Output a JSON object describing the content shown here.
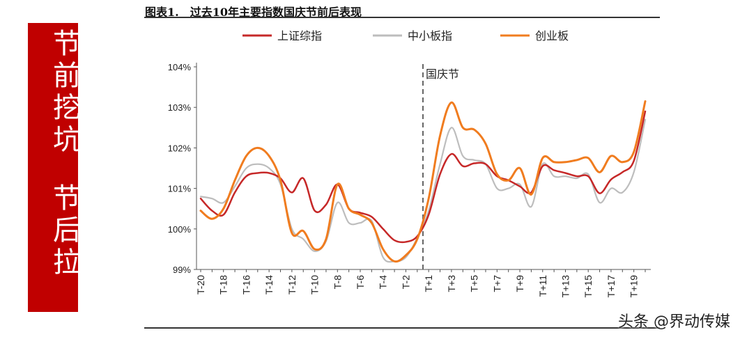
{
  "figure_title": "图表1.　过去10年主要指数国庆节前后表现",
  "banner": {
    "line1": "节前挖坑",
    "line2": "节后拉"
  },
  "watermark": "头条 @界动传媒",
  "chart_data": {
    "type": "line",
    "title": "图表1.　过去10年主要指数国庆节前后表现",
    "x": [
      "T-20",
      "T-19",
      "T-18",
      "T-17",
      "T-16",
      "T-15",
      "T-14",
      "T-13",
      "T-12",
      "T-11",
      "T-10",
      "T-9",
      "T-8",
      "T-7",
      "T-6",
      "T-5",
      "T-4",
      "T-3",
      "T-2",
      "T-1",
      "T+1",
      "T+2",
      "T+3",
      "T+4",
      "T+5",
      "T+6",
      "T+7",
      "T+8",
      "T+9",
      "T+10",
      "T+11",
      "T+12",
      "T+13",
      "T+14",
      "T+15",
      "T+16",
      "T+17",
      "T+18",
      "T+19",
      "T+20"
    ],
    "tick_labels": [
      "T-20",
      "T-18",
      "T-16",
      "T-14",
      "T-12",
      "T-10",
      "T-8",
      "T-6",
      "T-4",
      "T-2",
      "T+1",
      "T+3",
      "T+5",
      "T+7",
      "T+9",
      "T+11",
      "T+13",
      "T+15",
      "T+17",
      "T+19"
    ],
    "series": [
      {
        "name": "上证综指",
        "color": "#c62828",
        "values": [
          100.75,
          100.45,
          100.35,
          100.9,
          101.3,
          101.38,
          101.38,
          101.25,
          100.9,
          101.25,
          100.45,
          100.6,
          101.1,
          100.5,
          100.4,
          100.3,
          100.0,
          99.72,
          99.68,
          99.82,
          100.35,
          101.35,
          101.85,
          101.55,
          101.62,
          101.6,
          101.3,
          101.2,
          101.05,
          100.9,
          101.55,
          101.45,
          101.38,
          101.3,
          101.3,
          100.88,
          101.22,
          101.4,
          101.68,
          102.9
        ]
      },
      {
        "name": "中小板指",
        "color": "#bdbdbd",
        "values": [
          100.8,
          100.75,
          100.65,
          101.05,
          101.5,
          101.6,
          101.5,
          101.1,
          100.0,
          99.75,
          99.45,
          99.7,
          100.65,
          100.15,
          100.15,
          100.2,
          99.3,
          99.2,
          99.3,
          99.78,
          100.45,
          101.6,
          102.5,
          101.8,
          101.7,
          101.6,
          101.0,
          101.0,
          101.1,
          100.55,
          101.6,
          101.3,
          101.3,
          101.25,
          101.35,
          100.65,
          101.0,
          100.9,
          101.4,
          102.7
        ]
      },
      {
        "name": "创业板",
        "color": "#f07c1f",
        "values": [
          100.45,
          100.25,
          100.5,
          101.2,
          101.8,
          102.0,
          101.8,
          101.2,
          99.9,
          99.95,
          99.5,
          99.75,
          101.1,
          100.5,
          100.35,
          100.15,
          99.5,
          99.2,
          99.35,
          99.75,
          100.75,
          102.3,
          103.12,
          102.5,
          102.45,
          102.1,
          101.35,
          101.2,
          101.5,
          100.85,
          101.75,
          101.65,
          101.65,
          101.7,
          101.75,
          101.4,
          101.8,
          101.65,
          101.9,
          103.15
        ]
      }
    ],
    "ylim": [
      99,
      104
    ],
    "y_ticks": [
      "104%",
      "103%",
      "102%",
      "101%",
      "100%",
      "99%"
    ],
    "annotation": {
      "label": "国庆节",
      "between": [
        "T-1",
        "T+1"
      ]
    },
    "legend_position": "top",
    "grid": false
  }
}
